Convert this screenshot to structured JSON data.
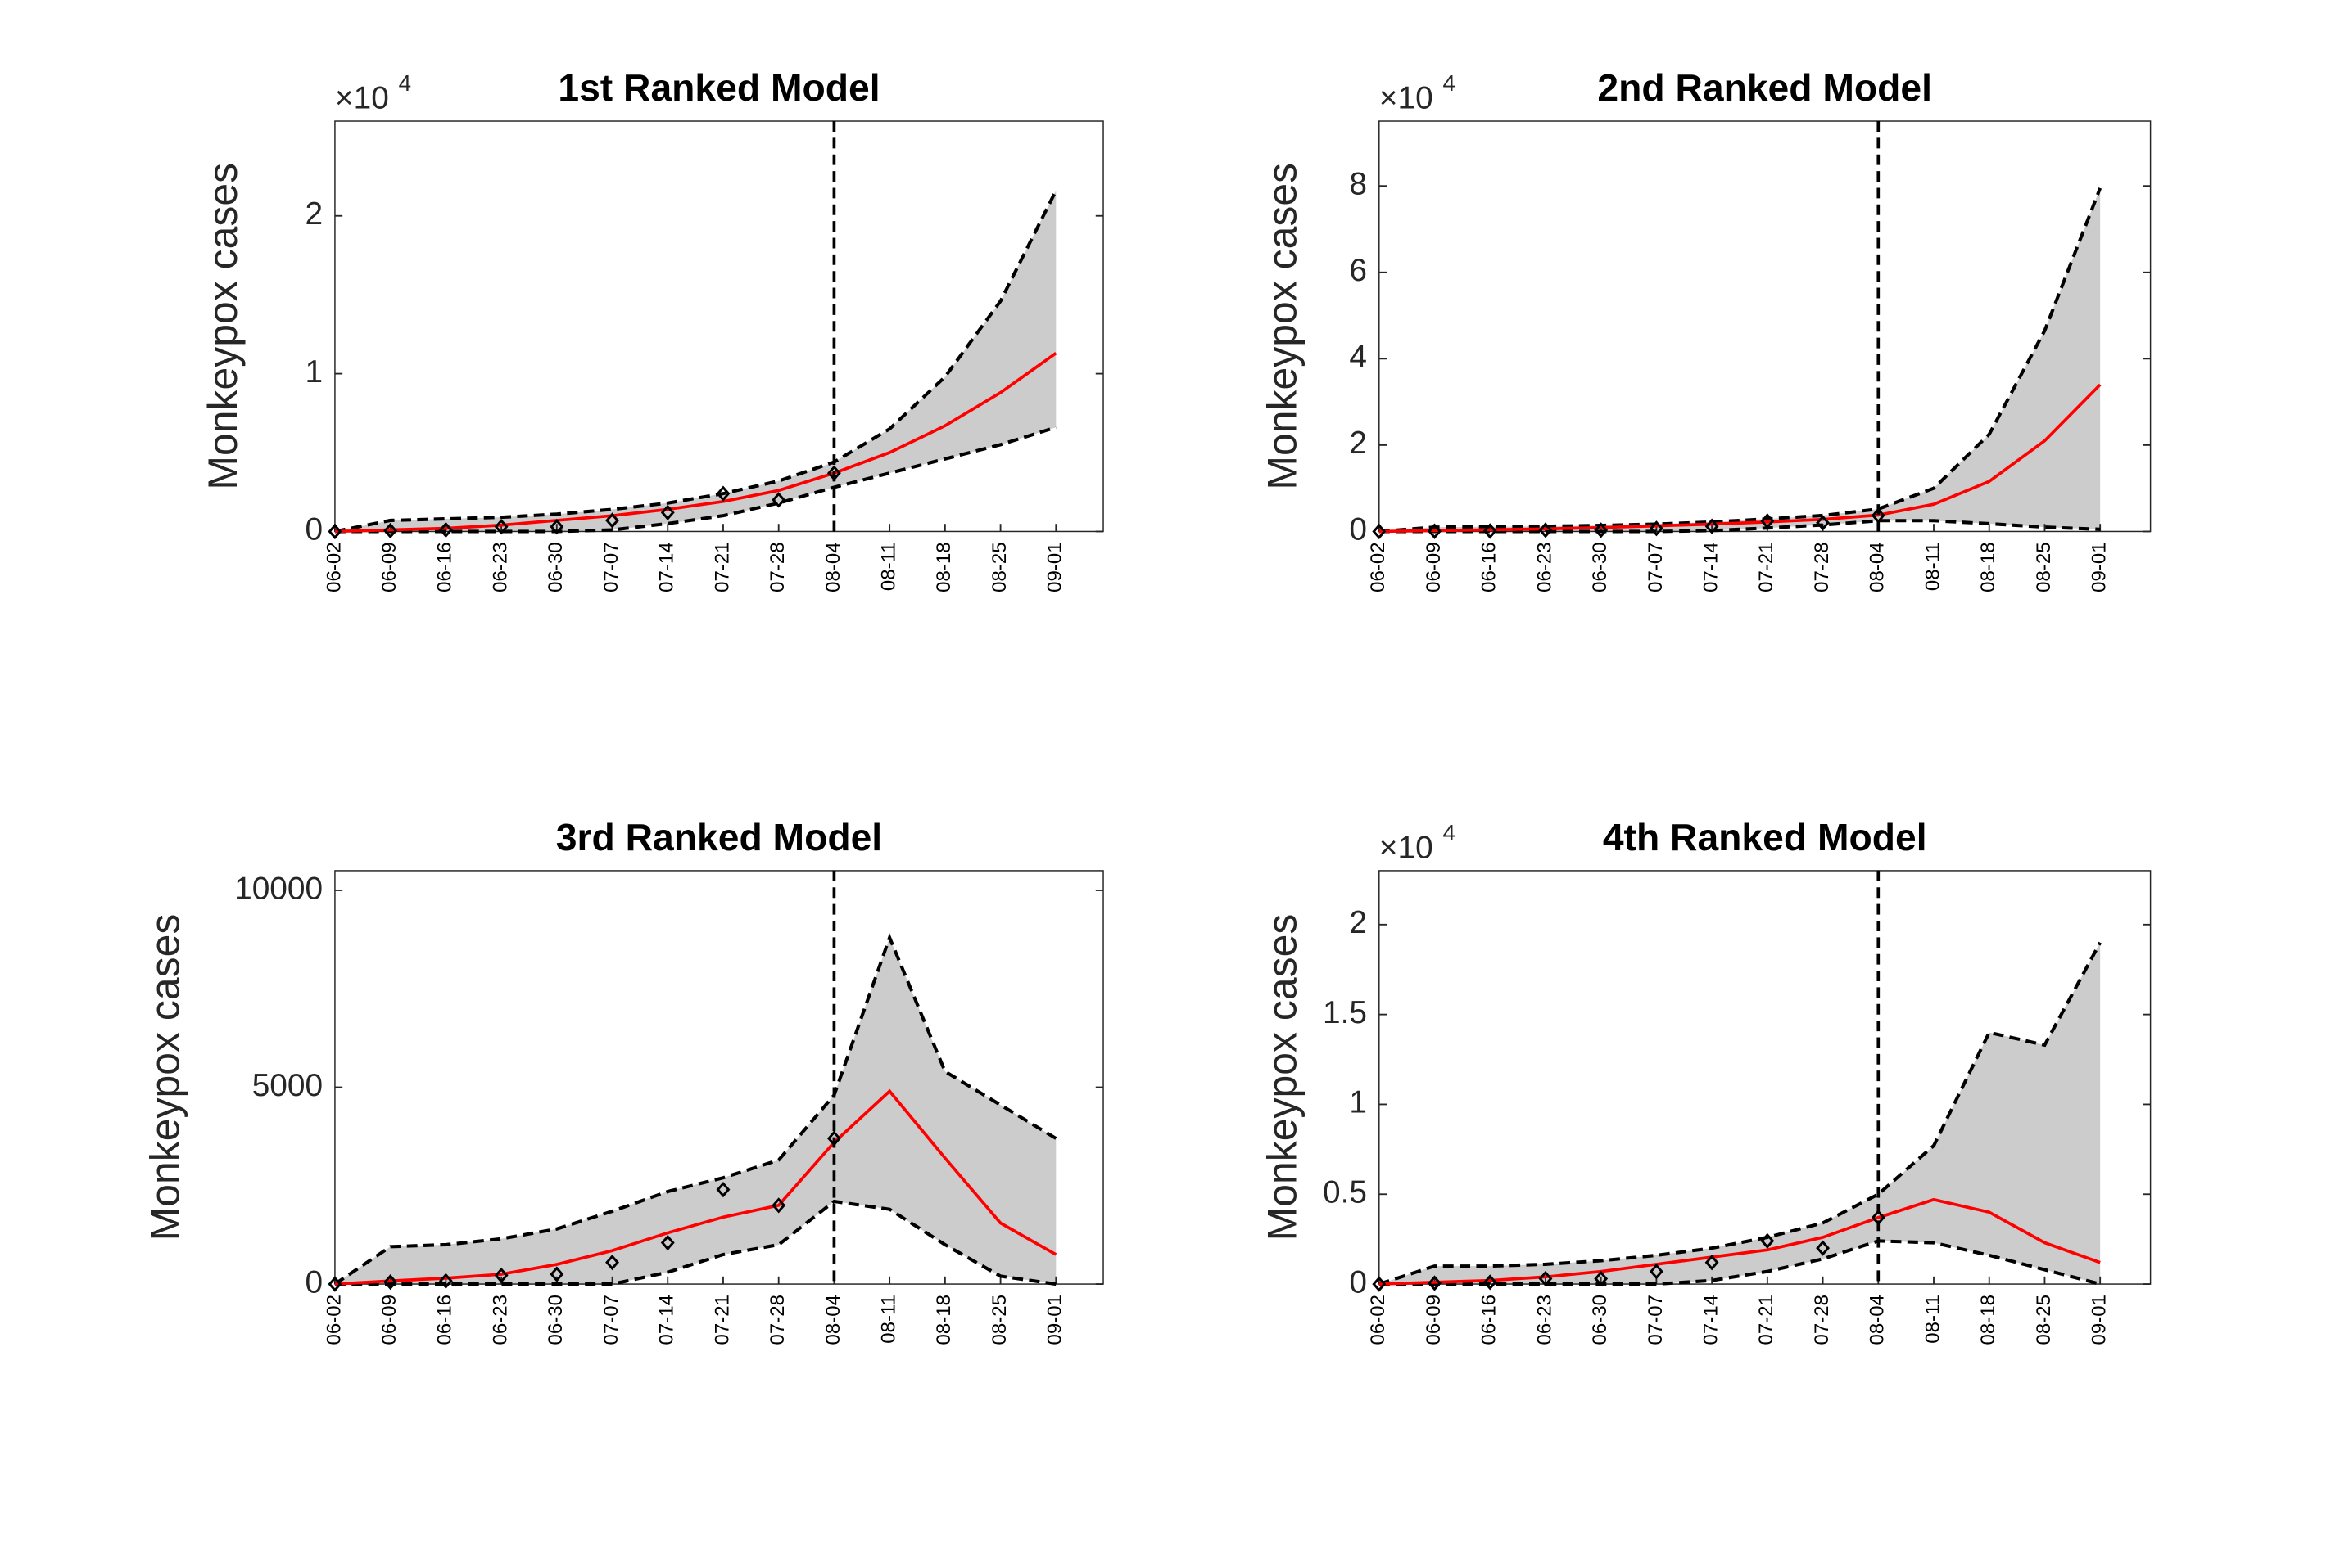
{
  "chart_data": [
    {
      "type": "line",
      "title": "1st Ranked Model",
      "ylabel": "Monkeypox cases",
      "y_multiplier": {
        "base": "×10",
        "exponent": "4"
      },
      "categories": [
        "06-02",
        "06-09",
        "06-16",
        "06-23",
        "06-30",
        "07-07",
        "07-14",
        "07-21",
        "07-28",
        "08-04",
        "08-11",
        "08-18",
        "08-25",
        "09-01"
      ],
      "forecast_start": "08-04",
      "ylim": [
        0,
        2.6
      ],
      "yticks": [
        0,
        1,
        2
      ],
      "band_color": "#cccccc",
      "upper": {
        "color": "#000000",
        "values": [
          0,
          0.07,
          0.08,
          0.09,
          0.11,
          0.14,
          0.18,
          0.24,
          0.32,
          0.44,
          0.65,
          0.98,
          1.46,
          2.16
        ]
      },
      "lower": {
        "color": "#000000",
        "values": [
          0,
          0,
          0,
          0,
          0,
          0.01,
          0.05,
          0.1,
          0.18,
          0.28,
          0.37,
          0.46,
          0.55,
          0.66
        ]
      },
      "fit": {
        "color": "#ff0000",
        "values": [
          0,
          0.01,
          0.02,
          0.04,
          0.07,
          0.1,
          0.14,
          0.19,
          0.26,
          0.37,
          0.5,
          0.67,
          0.88,
          1.13
        ]
      },
      "observed": {
        "color": "#000000",
        "values": [
          0,
          0.005,
          0.01,
          0.03,
          0.03,
          0.07,
          0.12,
          0.24,
          0.2,
          0.37,
          null,
          null,
          null,
          null
        ]
      }
    },
    {
      "type": "line",
      "title": "2nd Ranked Model",
      "ylabel": "Monkeypox cases",
      "y_multiplier": {
        "base": "×10",
        "exponent": "4"
      },
      "categories": [
        "06-02",
        "06-09",
        "06-16",
        "06-23",
        "06-30",
        "07-07",
        "07-14",
        "07-21",
        "07-28",
        "08-04",
        "08-11",
        "08-18",
        "08-25",
        "09-01"
      ],
      "forecast_start": "08-04",
      "ylim": [
        0,
        9.5
      ],
      "yticks": [
        0,
        2,
        4,
        6,
        8
      ],
      "band_color": "#cccccc",
      "upper": {
        "color": "#000000",
        "values": [
          0,
          0.1,
          0.11,
          0.12,
          0.14,
          0.17,
          0.22,
          0.29,
          0.37,
          0.52,
          1.0,
          2.25,
          4.65,
          7.95
        ]
      },
      "lower": {
        "color": "#000000",
        "values": [
          0,
          0,
          0,
          0,
          0,
          0,
          0.02,
          0.08,
          0.15,
          0.25,
          0.25,
          0.18,
          0.1,
          0.05
        ]
      },
      "fit": {
        "color": "#ff0000",
        "values": [
          0,
          0.02,
          0.04,
          0.06,
          0.09,
          0.13,
          0.17,
          0.22,
          0.28,
          0.38,
          0.63,
          1.16,
          2.1,
          3.4
        ]
      },
      "observed": {
        "color": "#000000",
        "values": [
          0,
          0.005,
          0.01,
          0.03,
          0.03,
          0.07,
          0.12,
          0.24,
          0.2,
          0.37,
          null,
          null,
          null,
          null
        ]
      }
    },
    {
      "type": "line",
      "title": "3rd Ranked Model",
      "ylabel": "Monkeypox cases",
      "categories": [
        "06-02",
        "06-09",
        "06-16",
        "06-23",
        "06-30",
        "07-07",
        "07-14",
        "07-21",
        "07-28",
        "08-04",
        "08-11",
        "08-18",
        "08-25",
        "09-01"
      ],
      "forecast_start": "08-04",
      "ylim": [
        0,
        10500
      ],
      "yticks": [
        0,
        5000,
        10000
      ],
      "band_color": "#cccccc",
      "upper": {
        "color": "#000000",
        "values": [
          0,
          950,
          1000,
          1150,
          1400,
          1850,
          2350,
          2700,
          3150,
          4800,
          8800,
          5400,
          4550,
          3700
        ]
      },
      "lower": {
        "color": "#000000",
        "values": [
          0,
          0,
          0,
          0,
          0,
          0,
          300,
          750,
          1000,
          2100,
          1900,
          1000,
          200,
          0
        ]
      },
      "fit": {
        "color": "#ff0000",
        "values": [
          0,
          80,
          150,
          250,
          500,
          850,
          1300,
          1700,
          2000,
          3600,
          4900,
          3200,
          1550,
          750
        ]
      },
      "observed": {
        "color": "#000000",
        "values": [
          0,
          50,
          80,
          220,
          250,
          550,
          1050,
          2400,
          2000,
          3700,
          null,
          null,
          null,
          null
        ]
      }
    },
    {
      "type": "line",
      "title": "4th Ranked Model",
      "ylabel": "Monkeypox cases",
      "y_multiplier": {
        "base": "×10",
        "exponent": "4"
      },
      "categories": [
        "06-02",
        "06-09",
        "06-16",
        "06-23",
        "06-30",
        "07-07",
        "07-14",
        "07-21",
        "07-28",
        "08-04",
        "08-11",
        "08-18",
        "08-25",
        "09-01"
      ],
      "forecast_start": "08-04",
      "ylim": [
        0,
        2.3
      ],
      "yticks": [
        0,
        0.5,
        1,
        1.5,
        2
      ],
      "band_color": "#cccccc",
      "upper": {
        "color": "#000000",
        "values": [
          0,
          0.1,
          0.1,
          0.11,
          0.13,
          0.16,
          0.2,
          0.26,
          0.34,
          0.5,
          0.77,
          1.4,
          1.33,
          1.9
        ]
      },
      "lower": {
        "color": "#000000",
        "values": [
          0,
          0,
          0,
          0,
          0,
          0,
          0.02,
          0.07,
          0.14,
          0.24,
          0.23,
          0.16,
          0.08,
          0
        ]
      },
      "fit": {
        "color": "#ff0000",
        "values": [
          0,
          0.01,
          0.02,
          0.04,
          0.07,
          0.11,
          0.15,
          0.19,
          0.26,
          0.37,
          0.47,
          0.4,
          0.23,
          0.12
        ]
      },
      "observed": {
        "color": "#000000",
        "values": [
          0,
          0.005,
          0.01,
          0.03,
          0.03,
          0.07,
          0.12,
          0.24,
          0.2,
          0.37,
          null,
          null,
          null,
          null
        ]
      }
    }
  ]
}
